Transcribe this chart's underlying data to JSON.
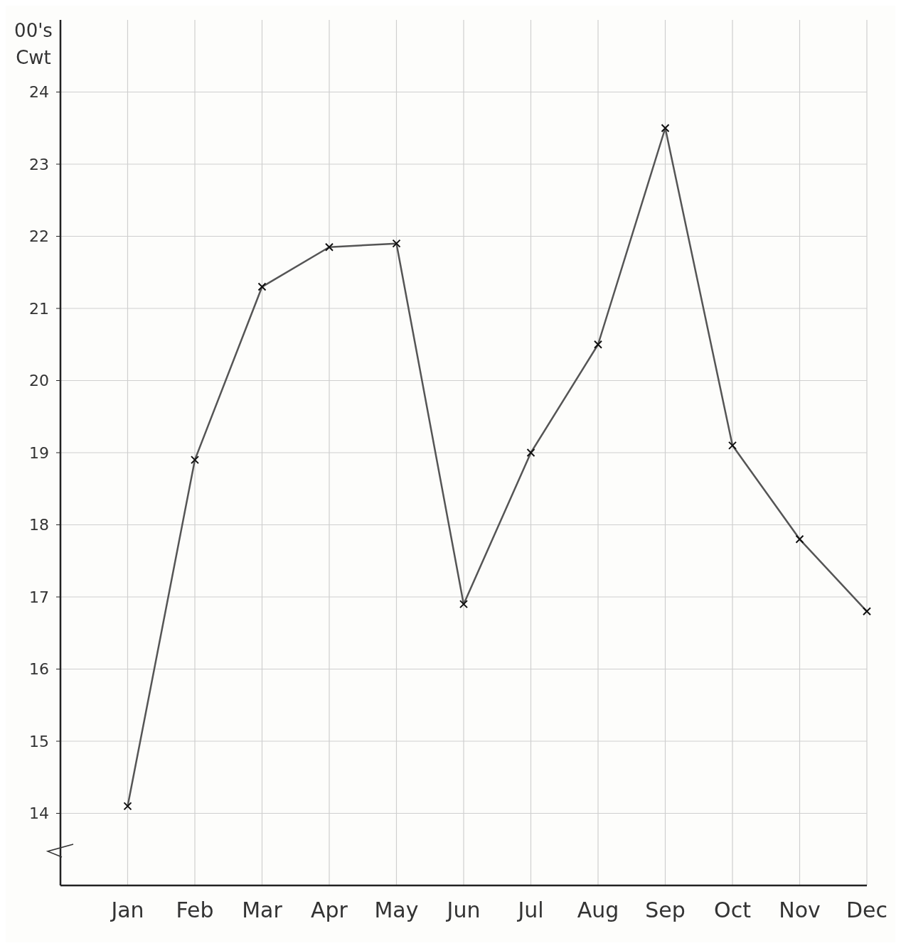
{
  "chart_data": {
    "type": "line",
    "ylabel": "00's Cwt",
    "categories": [
      "Jan",
      "Feb",
      "Mar",
      "Apr",
      "May",
      "Jun",
      "Jul",
      "Aug",
      "Sep",
      "Oct",
      "Nov",
      "Dec"
    ],
    "series": [
      {
        "color": "#555555",
        "values": [
          14.1,
          18.9,
          21.3,
          21.85,
          21.9,
          16.9,
          19.0,
          20.5,
          23.5,
          19.1,
          17.8,
          16.8
        ]
      }
    ],
    "ylim": [
      13,
      25
    ],
    "yticks": [
      14,
      15,
      16,
      17,
      18,
      19,
      20,
      21,
      22,
      23,
      24
    ],
    "grid": true,
    "marker": "cross",
    "line_style": "solid"
  }
}
